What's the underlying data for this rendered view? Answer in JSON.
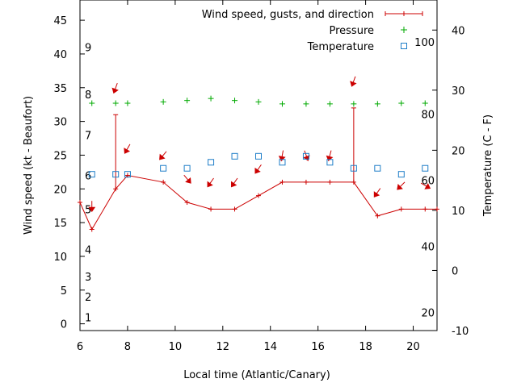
{
  "chart_data": {
    "type": "line",
    "xlabel": "Local time (Atlantic/Canary)",
    "ylabel": "Wind speed (kt - Beaufort)",
    "y2label": "Temperature (C - F)",
    "xlim": [
      6,
      21
    ],
    "ylim": [
      -1,
      48
    ],
    "y2lim": [
      -10,
      45
    ],
    "x_ticks": [
      6,
      8,
      10,
      12,
      14,
      16,
      18,
      20
    ],
    "y_ticks": [
      0,
      5,
      10,
      15,
      20,
      25,
      30,
      35,
      40,
      45
    ],
    "y2_ticks": [
      -10,
      0,
      10,
      20,
      30,
      40
    ],
    "beaufort_labels": [
      {
        "label": "1",
        "y": 1
      },
      {
        "label": "2",
        "y": 4
      },
      {
        "label": "3",
        "y": 7
      },
      {
        "label": "4",
        "y": 11
      },
      {
        "label": "5",
        "y": 17
      },
      {
        "label": "6",
        "y": 22
      },
      {
        "label": "7",
        "y": 28
      },
      {
        "label": "8",
        "y": 34
      },
      {
        "label": "9",
        "y": 41
      }
    ],
    "fahrenheit_labels": [
      {
        "label": "20",
        "y2": -7
      },
      {
        "label": "40",
        "y2": 4
      },
      {
        "label": "60",
        "y2": 15
      },
      {
        "label": "80",
        "y2": 26
      },
      {
        "label": "100",
        "y2": 38
      }
    ],
    "legend_position": "top-right",
    "series": [
      {
        "name": "Wind speed, gusts, and direction",
        "color": "#cc0000",
        "axis": "y",
        "x": [
          6,
          6.5,
          7.5,
          8,
          9.5,
          10.5,
          11.5,
          12.5,
          13.5,
          14.5,
          15.5,
          16.5,
          17.5,
          18.5,
          19.5,
          20.5,
          21
        ],
        "values": [
          18,
          14,
          20,
          22,
          21,
          18,
          17,
          17,
          19,
          21,
          21,
          21,
          21,
          16,
          17,
          17,
          17
        ],
        "gusts": [
          {
            "x": 7.5,
            "low": 20,
            "high": 31
          },
          {
            "x": 17.5,
            "low": 21,
            "high": 32
          }
        ],
        "direction_arrows": [
          {
            "x": 6.5,
            "y": 17.5,
            "heading_deg": 0
          },
          {
            "x": 7.5,
            "y": 35,
            "heading_deg": 20
          },
          {
            "x": 8,
            "y": 26,
            "heading_deg": 30
          },
          {
            "x": 9.5,
            "y": 25,
            "heading_deg": 40
          },
          {
            "x": 10.5,
            "y": 21.5,
            "heading_deg": 320
          },
          {
            "x": 11.5,
            "y": 21,
            "heading_deg": 35
          },
          {
            "x": 12.5,
            "y": 21,
            "heading_deg": 35
          },
          {
            "x": 13.5,
            "y": 23,
            "heading_deg": 35
          },
          {
            "x": 14.5,
            "y": 25,
            "heading_deg": 10
          },
          {
            "x": 15.5,
            "y": 25,
            "heading_deg": 340
          },
          {
            "x": 16.5,
            "y": 25,
            "heading_deg": 15
          },
          {
            "x": 17.5,
            "y": 36,
            "heading_deg": 20
          },
          {
            "x": 18.5,
            "y": 19.5,
            "heading_deg": 35
          },
          {
            "x": 19.5,
            "y": 20.5,
            "heading_deg": 45
          },
          {
            "x": 20.5,
            "y": 20.5,
            "heading_deg": 300
          }
        ]
      },
      {
        "name": "Pressure",
        "color": "#00aa00",
        "axis": "y",
        "marker": "plus",
        "x": [
          6.5,
          7.5,
          8,
          9.5,
          10.5,
          11.5,
          12.5,
          13.5,
          14.5,
          15.5,
          16.5,
          17.5,
          18.5,
          19.5,
          20.5
        ],
        "values": [
          32.7,
          32.7,
          32.7,
          32.9,
          33.1,
          33.4,
          33.1,
          32.9,
          32.6,
          32.6,
          32.6,
          32.6,
          32.6,
          32.7,
          32.7
        ]
      },
      {
        "name": "Temperature",
        "color": "#1f7ec8",
        "axis": "y2",
        "marker": "square",
        "x": [
          6.5,
          7.5,
          8,
          9.5,
          10.5,
          11.5,
          12.5,
          13.5,
          14.5,
          15.5,
          16.5,
          17.5,
          18.5,
          19.5,
          20.5
        ],
        "values": [
          16,
          16,
          16,
          17,
          17,
          18,
          19,
          19,
          18,
          19,
          18,
          17,
          17,
          16,
          17
        ]
      }
    ]
  }
}
